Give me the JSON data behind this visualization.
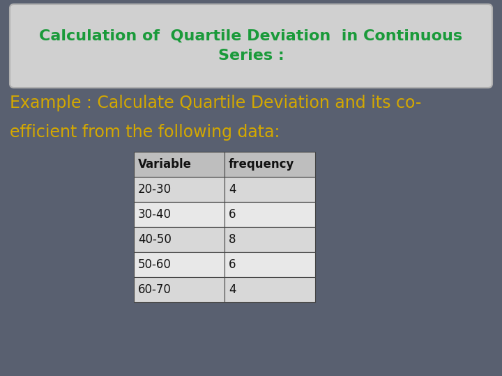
{
  "background_color": "#596070",
  "title_box_color": "#d0d0d0",
  "title_box_edge_color": "#b0b0b0",
  "title_text": "Calculation of  Quartile Deviation  in Continuous\nSeries :",
  "title_text_color": "#1a9a3a",
  "example_text_line1": "Example : Calculate Quartile Deviation and its co-",
  "example_text_line2": "efficient from the following data:",
  "example_text_color": "#d4a800",
  "table_headers": [
    "Variable",
    "frequency"
  ],
  "table_rows": [
    [
      "20-30",
      "4"
    ],
    [
      "30-40",
      "6"
    ],
    [
      "40-50",
      "8"
    ],
    [
      "50-60",
      "6"
    ],
    [
      "60-70",
      "4"
    ]
  ],
  "table_header_bg": "#bebebe",
  "table_row_bg_odd": "#d8d8d8",
  "table_row_bg_even": "#e8e8e8",
  "table_text_color": "#111111",
  "table_border_color": "#444444",
  "title_fontsize": 16,
  "example_fontsize": 17,
  "table_fontsize": 12
}
